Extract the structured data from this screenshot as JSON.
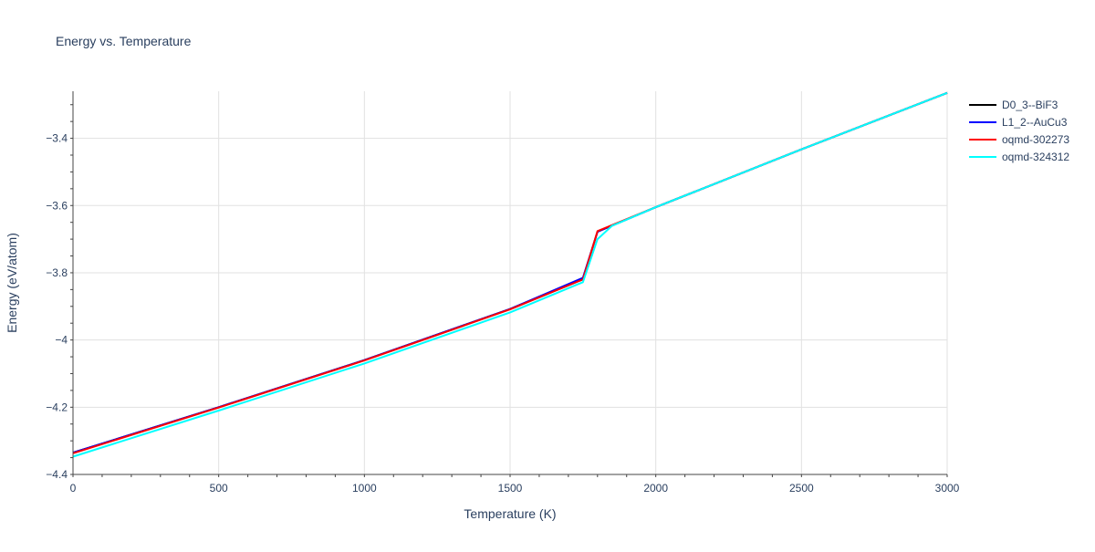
{
  "chart_data": {
    "type": "line",
    "title": "Energy vs. Temperature",
    "xlabel": "Temperature (K)",
    "ylabel": "Energy (eV/atom)",
    "xlim": [
      0,
      3000
    ],
    "ylim": [
      -4.4,
      -3.26
    ],
    "xticks": [
      0,
      500,
      1000,
      1500,
      2000,
      2500,
      3000
    ],
    "xtick_labels": [
      "0",
      "500",
      "1000",
      "1500",
      "2000",
      "2500",
      "3000"
    ],
    "yticks": [
      -4.4,
      -4.2,
      -4.0,
      -3.8,
      -3.6,
      -3.4
    ],
    "ytick_labels": [
      "−4.4",
      "−4.2",
      "−4",
      "−3.8",
      "−3.6",
      "−3.4"
    ],
    "grid": true,
    "legend_position": "top-right",
    "colors": {
      "axis_text": "#2a3f5f",
      "grid": "#e1e1e1",
      "axis_line": "#444444"
    },
    "series": [
      {
        "name": "D0_3--BiF3",
        "color": "#000000",
        "x": [
          0,
          500,
          1000,
          1500,
          1750,
          1800,
          2000,
          2500,
          3000
        ],
        "y": [
          -4.335,
          -4.2,
          -4.06,
          -3.908,
          -3.818,
          -3.678,
          -3.605,
          -3.433,
          -3.265
        ]
      },
      {
        "name": "L1_2--AuCu3",
        "color": "#0000ff",
        "x": [
          0,
          500,
          1000,
          1500,
          1750,
          1800,
          2000,
          2500,
          3000
        ],
        "y": [
          -4.335,
          -4.2,
          -4.06,
          -3.908,
          -3.815,
          -3.678,
          -3.605,
          -3.433,
          -3.265
        ]
      },
      {
        "name": "oqmd-302273",
        "color": "#ff0000",
        "x": [
          0,
          500,
          1000,
          1500,
          1750,
          1800,
          2000,
          2500,
          3000
        ],
        "y": [
          -4.337,
          -4.201,
          -4.061,
          -3.909,
          -3.82,
          -3.676,
          -3.605,
          -3.433,
          -3.265
        ]
      },
      {
        "name": "oqmd-324312",
        "color": "#00ffff",
        "x": [
          0,
          500,
          1000,
          1500,
          1750,
          1800,
          1850,
          2000,
          2500,
          3000
        ],
        "y": [
          -4.347,
          -4.21,
          -4.07,
          -3.918,
          -3.828,
          -3.7,
          -3.66,
          -3.605,
          -3.433,
          -3.265
        ]
      }
    ]
  }
}
